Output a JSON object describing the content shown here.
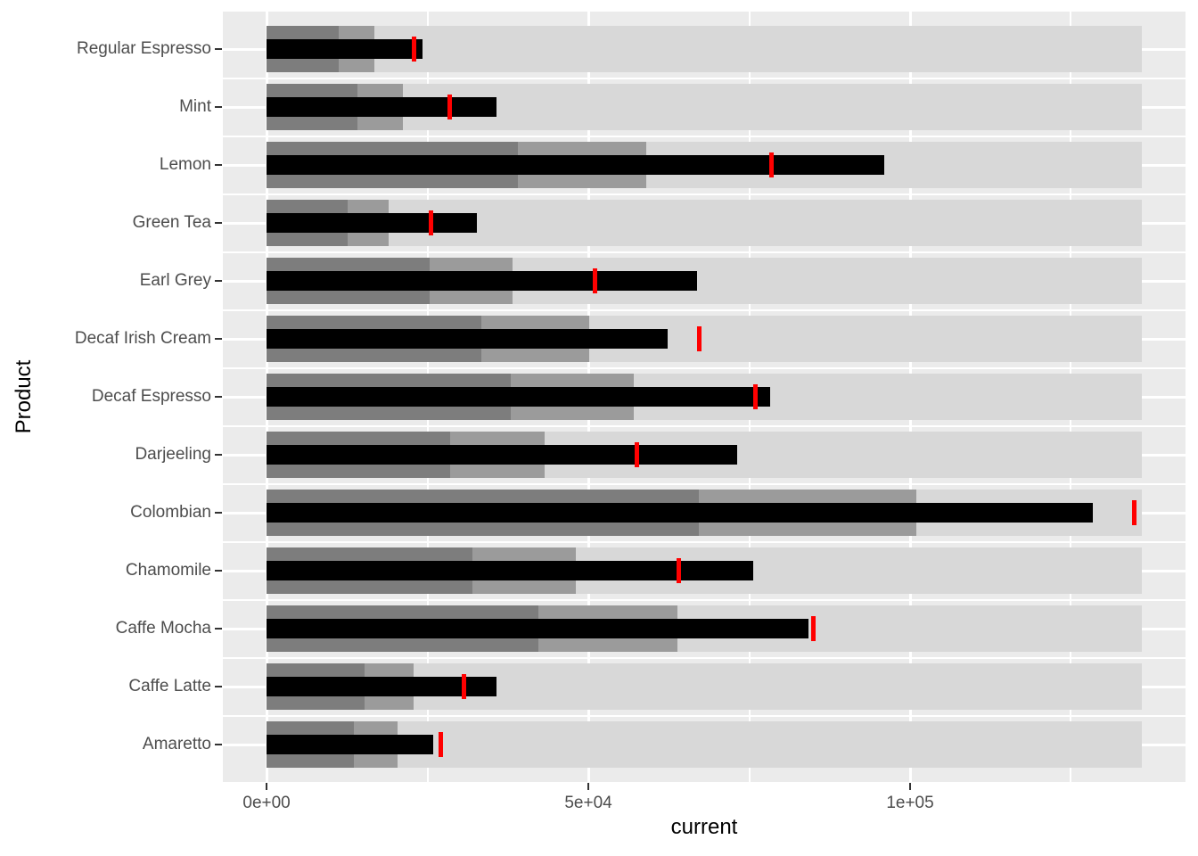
{
  "figure": {
    "background": "#FFFFFF",
    "panel_background": "#EBEBEB",
    "gridline_color": "#FFFFFF",
    "axis_text_color": "#4D4D4D",
    "tick_mark_color": "#333333"
  },
  "chart_data": {
    "type": "bar",
    "subtype": "bullet-graph",
    "orientation": "horizontal",
    "title": "",
    "xlabel": "current",
    "ylabel": "Product",
    "xlim": [
      -6800,
      142800
    ],
    "grid": true,
    "legend": false,
    "x_ticks": [
      {
        "value": 0,
        "label": "0e+00"
      },
      {
        "value": 50000,
        "label": "5e+04"
      },
      {
        "value": 100000,
        "label": "1e+05"
      }
    ],
    "x_minor_ticks": [
      25000,
      75000,
      125000
    ],
    "colors": {
      "range1": "#7D7D7D",
      "range2": "#9B9B9B",
      "range3": "#D8D8D8",
      "measure": "#000000",
      "target": "#FF0000"
    },
    "series_legend": {
      "range1": "qualitative range 1 (dark gray)",
      "range2": "qualitative range 2 (medium gray)",
      "range3": "qualitative range 3 (light gray)",
      "measure": "current value (black bar)",
      "target": "target (red tick)"
    },
    "products": [
      {
        "label": "Regular Espresso",
        "range1": 11200,
        "range2": 16800,
        "range3": 136000,
        "current": 24200,
        "target": 22900
      },
      {
        "label": "Mint",
        "range1": 14100,
        "range2": 21200,
        "range3": 136000,
        "current": 35700,
        "target": 28500
      },
      {
        "label": "Lemon",
        "range1": 39100,
        "range2": 59000,
        "range3": 136000,
        "current": 96000,
        "target": 78500
      },
      {
        "label": "Green Tea",
        "range1": 12600,
        "range2": 19000,
        "range3": 136000,
        "current": 32700,
        "target": 25500
      },
      {
        "label": "Earl Grey",
        "range1": 25300,
        "range2": 38200,
        "range3": 136000,
        "current": 66900,
        "target": 51000
      },
      {
        "label": "Decaf Irish Cream",
        "range1": 33400,
        "range2": 50100,
        "range3": 136000,
        "current": 62300,
        "target": 67300
      },
      {
        "label": "Decaf Espresso",
        "range1": 38000,
        "range2": 57100,
        "range3": 136000,
        "current": 78200,
        "target": 76000
      },
      {
        "label": "Darjeeling",
        "range1": 28500,
        "range2": 43200,
        "range3": 136000,
        "current": 73100,
        "target": 57600
      },
      {
        "label": "Colombian",
        "range1": 67200,
        "range2": 101000,
        "range3": 136000,
        "current": 128400,
        "target": 134800
      },
      {
        "label": "Chamomile",
        "range1": 32000,
        "range2": 48100,
        "range3": 136000,
        "current": 75600,
        "target": 64100
      },
      {
        "label": "Caffe Mocha",
        "range1": 42200,
        "range2": 63800,
        "range3": 136000,
        "current": 84200,
        "target": 84900
      },
      {
        "label": "Caffe Latte",
        "range1": 15200,
        "range2": 22900,
        "range3": 136000,
        "current": 35700,
        "target": 30700
      },
      {
        "label": "Amaretto",
        "range1": 13600,
        "range2": 20400,
        "range3": 136000,
        "current": 25900,
        "target": 27000
      }
    ]
  }
}
